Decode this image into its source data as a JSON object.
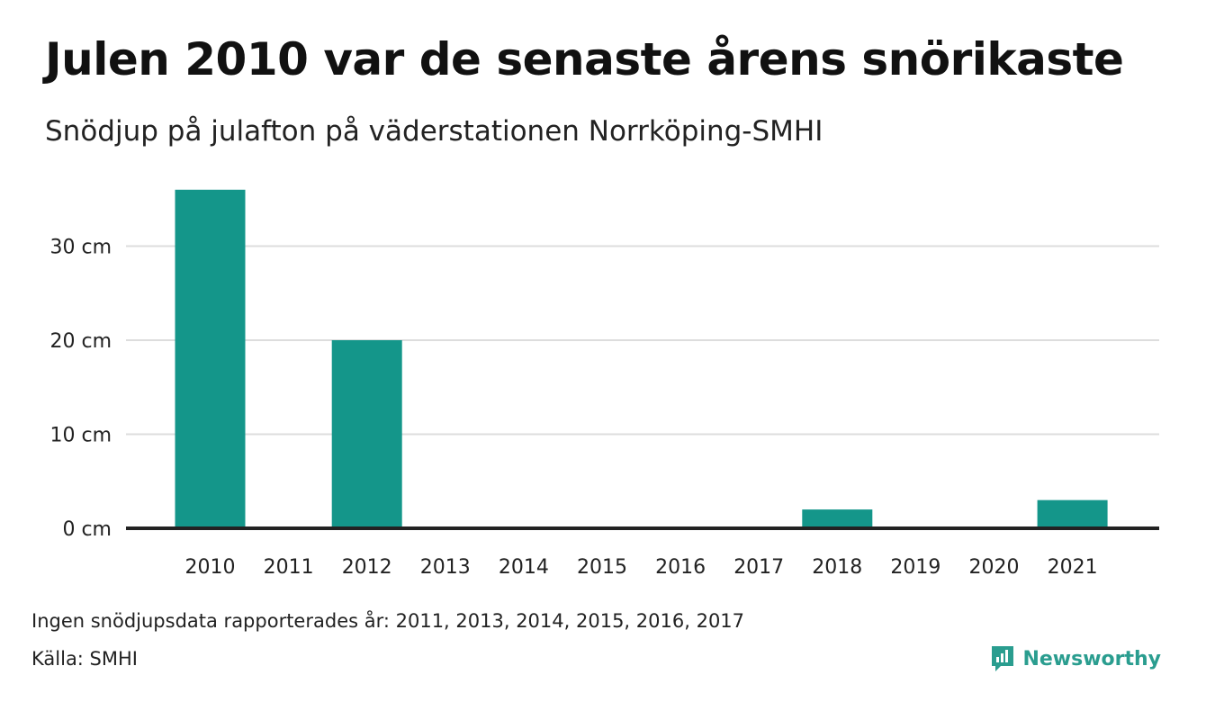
{
  "chart_data": {
    "type": "bar",
    "title": "Julen 2010 var de senaste årens snörikaste",
    "subtitle": "Snödjup på julafton på väderstationen Norrköping-SMHI",
    "categories": [
      "2010",
      "2011",
      "2012",
      "2013",
      "2014",
      "2015",
      "2016",
      "2017",
      "2018",
      "2019",
      "2020",
      "2021"
    ],
    "values": [
      36,
      null,
      20,
      null,
      null,
      null,
      null,
      null,
      2,
      0,
      0,
      3
    ],
    "ylim": [
      0,
      36
    ],
    "yticks": [
      0,
      10,
      20,
      30
    ],
    "ytick_labels": [
      "0 cm",
      "10 cm",
      "20 cm",
      "30 cm"
    ],
    "grid": true,
    "bar_color": "#14968a"
  },
  "footer": {
    "note": "Ingen snödjupsdata rapporterades år: 2011, 2013, 2014, 2015, 2016, 2017",
    "source": "Källa: SMHI",
    "brand": "Newsworthy",
    "brand_color": "#2a9d8f",
    "brand_icon": "newsworthy-logo-icon"
  }
}
